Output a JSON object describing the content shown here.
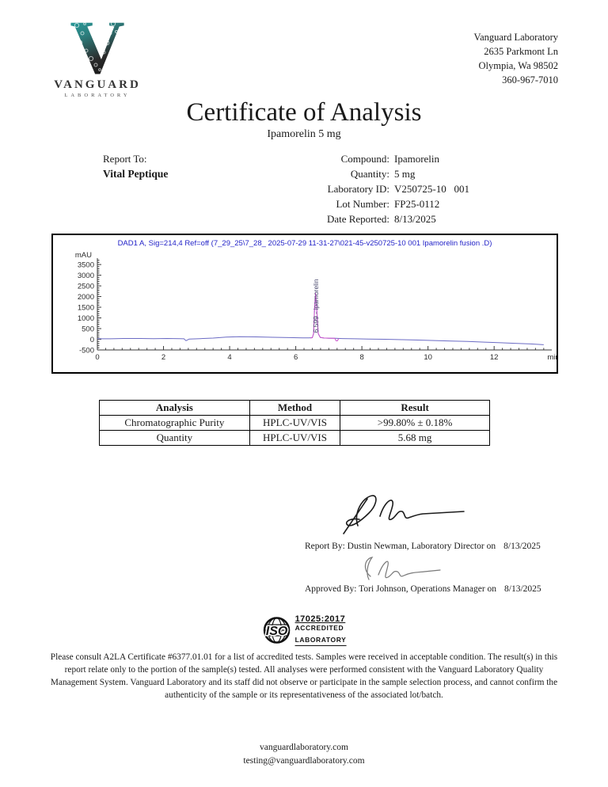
{
  "header": {
    "logo": {
      "letter": "V",
      "name": "VANGUARD",
      "sub": "LABORATORY"
    },
    "address_lines": [
      "Vanguard Laboratory",
      "2635 Parkmont Ln",
      "Olympia, Wa 98502",
      "360-967-7010"
    ]
  },
  "title": "Certificate of Analysis",
  "subtitle": "Ipamorelin 5 mg",
  "report_to": {
    "label": "Report To:",
    "name": "Vital Peptique"
  },
  "details": [
    {
      "label": "Compound:",
      "value": "Ipamorelin"
    },
    {
      "label": "Quantity:",
      "value": "5 mg"
    },
    {
      "label": "Laboratory ID:",
      "value": "V250725-10   001"
    },
    {
      "label": "Lot Number:",
      "value": "FP25-0112"
    },
    {
      "label": "Date Reported:",
      "value": "8/13/2025"
    }
  ],
  "chart_data": {
    "type": "line",
    "title": "DAD1 A, Sig=214,4 Ref=off (7_29_25\\7_28_ 2025-07-29 11-31-27\\021-45-v250725-10 001 Ipamorelin fusion .D)",
    "ylabel": "mAU",
    "xlabel": "min",
    "xlim": [
      0,
      13.6
    ],
    "ylim": [
      -500,
      3800
    ],
    "yticks": [
      3500,
      3000,
      2500,
      2000,
      1500,
      1000,
      500,
      0,
      -500
    ],
    "xticks": [
      0,
      2,
      4,
      6,
      8,
      10,
      12
    ],
    "grid": false,
    "peak": {
      "retention_time": 6.599,
      "label": "ipamorelin",
      "annotation": "6.599 - ipamorelin",
      "height_mAU": 2150
    },
    "series": [
      {
        "name": "signal",
        "color": "#6b6bc4",
        "points": [
          [
            0,
            25
          ],
          [
            0.4,
            22
          ],
          [
            0.8,
            38
          ],
          [
            1.3,
            36
          ],
          [
            1.7,
            30
          ],
          [
            2.1,
            36
          ],
          [
            2.5,
            28
          ],
          [
            2.62,
            22
          ],
          [
            2.68,
            -65
          ],
          [
            2.78,
            12
          ],
          [
            3.1,
            30
          ],
          [
            3.5,
            55
          ],
          [
            3.9,
            100
          ],
          [
            4.3,
            118
          ],
          [
            4.8,
            112
          ],
          [
            5.3,
            92
          ],
          [
            5.8,
            78
          ],
          [
            6.2,
            68
          ],
          [
            6.4,
            62
          ],
          [
            6.5,
            75
          ],
          [
            6.54,
            260
          ],
          [
            6.57,
            1500
          ],
          [
            6.6,
            2140
          ],
          [
            6.63,
            1500
          ],
          [
            6.68,
            260
          ],
          [
            6.74,
            85
          ],
          [
            6.85,
            58
          ],
          [
            7.0,
            50
          ],
          [
            7.2,
            44
          ],
          [
            7.4,
            34
          ],
          [
            7.8,
            24
          ],
          [
            8.2,
            12
          ],
          [
            8.7,
            0
          ],
          [
            9.2,
            -18
          ],
          [
            9.7,
            -38
          ],
          [
            10.2,
            -58
          ],
          [
            10.7,
            -80
          ],
          [
            11.2,
            -105
          ],
          [
            11.7,
            -132
          ],
          [
            12.2,
            -162
          ],
          [
            12.7,
            -195
          ],
          [
            13.1,
            -220
          ],
          [
            13.5,
            -255
          ]
        ]
      },
      {
        "name": "integration",
        "color": "#cc55cc",
        "points": [
          [
            6.44,
            58
          ],
          [
            6.5,
            75
          ],
          [
            6.54,
            270
          ],
          [
            6.57,
            1520
          ],
          [
            6.6,
            2150
          ],
          [
            6.63,
            1520
          ],
          [
            6.68,
            270
          ],
          [
            6.74,
            88
          ],
          [
            6.85,
            60
          ],
          [
            7.0,
            52
          ],
          [
            7.18,
            46
          ],
          [
            7.22,
            -70
          ],
          [
            7.26,
            -75
          ],
          [
            7.3,
            40
          ]
        ]
      }
    ]
  },
  "results_table": {
    "headers": [
      "Analysis",
      "Method",
      "Result"
    ],
    "rows": [
      [
        "Chromatographic Purity",
        "HPLC-UV/VIS",
        ">99.80% ± 0.18%"
      ],
      [
        "Quantity",
        "HPLC-UV/VIS",
        "5.68 mg"
      ]
    ]
  },
  "signatures": [
    {
      "line": "Report By: Dustin Newman, Laboratory Director on",
      "date": "8/13/2025"
    },
    {
      "line": "Approved By: Tori Johnson, Operations Manager on",
      "date": "8/13/2025"
    }
  ],
  "iso_badge": {
    "iso": "ISO",
    "standard": "17025:2017",
    "line1": "ACCREDITED",
    "line2": "LABORATORY"
  },
  "disclaimer": "Please consult A2LA Certificate #6377.01.01 for a list of accredited tests. Samples were received in acceptable condition. The result(s) in this report relate only to the portion of the sample(s) tested. All analyses were performed consistent with the Vanguard Laboratory Quality Management System. Vanguard Laboratory and its staff did not observe or participate in the sample selection process, and cannot confirm the authenticity of the sample or its representativeness of the associated lot/batch.",
  "footer": {
    "website": "vanguardlaboratory.com",
    "email": "testing@vanguardlaboratory.com"
  }
}
